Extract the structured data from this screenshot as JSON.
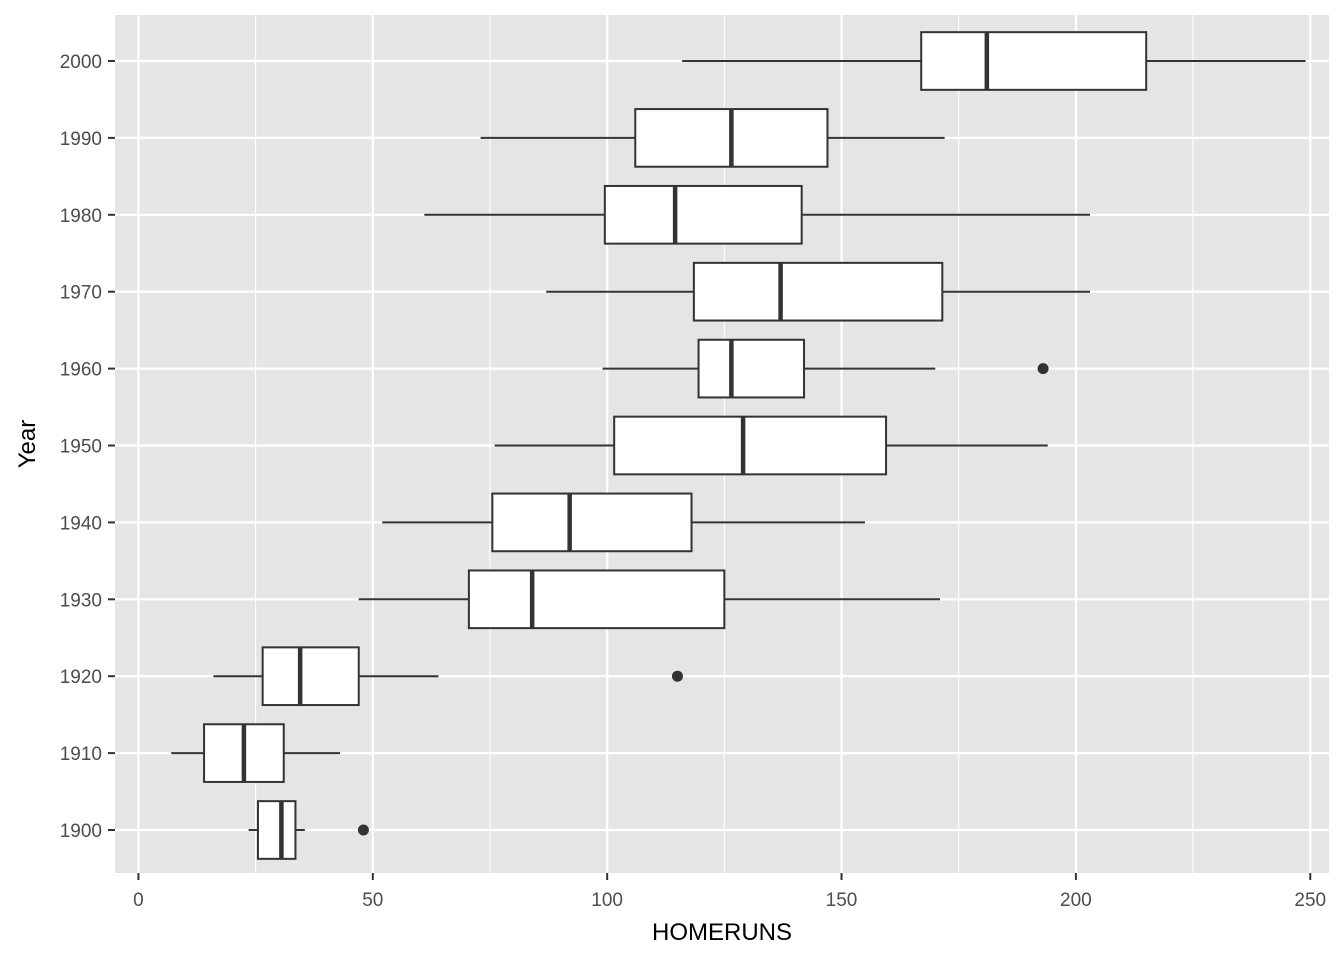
{
  "chart_data": {
    "type": "boxplot",
    "orientation": "horizontal",
    "xlabel": "HOMERUNS",
    "ylabel": "Year",
    "xlim": [
      -5,
      254
    ],
    "x_ticks": [
      0,
      50,
      100,
      150,
      200,
      250
    ],
    "x_tick_labels": [
      "0",
      "50",
      "100",
      "150",
      "200",
      "250"
    ],
    "grid": true,
    "legend": "none",
    "colors": {
      "panel": "#e5e5e5",
      "grid": "#ffffff",
      "box_fill": "#ffffff",
      "box_line": "#333333"
    },
    "categories": [
      "1900",
      "1910",
      "1920",
      "1930",
      "1940",
      "1950",
      "1960",
      "1970",
      "1980",
      "1990",
      "2000"
    ],
    "boxes": [
      {
        "category": "1900",
        "whisker_low": 23.5,
        "q1": 25.5,
        "median": 30.5,
        "q3": 33.5,
        "whisker_high": 35.5,
        "outliers": [
          48
        ]
      },
      {
        "category": "1910",
        "whisker_low": 7,
        "q1": 14,
        "median": 22.5,
        "q3": 31,
        "whisker_high": 43,
        "outliers": []
      },
      {
        "category": "1920",
        "whisker_low": 16,
        "q1": 26.5,
        "median": 34.5,
        "q3": 47,
        "whisker_high": 64,
        "outliers": [
          115
        ]
      },
      {
        "category": "1930",
        "whisker_low": 47,
        "q1": 70.5,
        "median": 84,
        "q3": 125,
        "whisker_high": 171,
        "outliers": []
      },
      {
        "category": "1940",
        "whisker_low": 52,
        "q1": 75.5,
        "median": 92,
        "q3": 118,
        "whisker_high": 155,
        "outliers": []
      },
      {
        "category": "1950",
        "whisker_low": 76,
        "q1": 101.5,
        "median": 129,
        "q3": 159.5,
        "whisker_high": 194,
        "outliers": []
      },
      {
        "category": "1960",
        "whisker_low": 99,
        "q1": 119.5,
        "median": 126.5,
        "q3": 142,
        "whisker_high": 170,
        "outliers": [
          193
        ]
      },
      {
        "category": "1970",
        "whisker_low": 87,
        "q1": 118.5,
        "median": 137,
        "q3": 171.5,
        "whisker_high": 203,
        "outliers": []
      },
      {
        "category": "1980",
        "whisker_low": 61,
        "q1": 99.5,
        "median": 114.5,
        "q3": 141.5,
        "whisker_high": 203,
        "outliers": []
      },
      {
        "category": "1990",
        "whisker_low": 73,
        "q1": 106,
        "median": 126.5,
        "q3": 147,
        "whisker_high": 172,
        "outliers": []
      },
      {
        "category": "2000",
        "whisker_low": 116,
        "q1": 167,
        "median": 181,
        "q3": 215,
        "whisker_high": 249,
        "outliers": []
      }
    ]
  }
}
